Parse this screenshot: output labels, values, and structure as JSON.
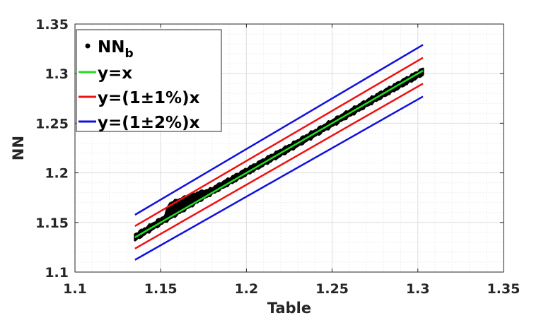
{
  "chart_data": {
    "type": "scatter",
    "xlabel": "Table",
    "ylabel": "NN",
    "xlim": [
      1.1,
      1.35
    ],
    "ylim": [
      1.1,
      1.35
    ],
    "xticks": [
      "1.1",
      "1.15",
      "1.2",
      "1.25",
      "1.3",
      "1.35"
    ],
    "yticks": [
      "1.1",
      "1.15",
      "1.2",
      "1.25",
      "1.3",
      "1.35"
    ],
    "grid": true,
    "minor_grid": true,
    "legend_position": "top-left",
    "legend": [
      {
        "label_main": "NN",
        "label_sub": "b",
        "color": "#000000",
        "marker": "dot"
      },
      {
        "label_main": "y=x",
        "label_sub": "",
        "color": "#22dd22",
        "marker": "line"
      },
      {
        "label_main": "y=(1±1%)x",
        "label_sub": "",
        "color": "#ee1111",
        "marker": "line"
      },
      {
        "label_main": "y=(1±2%)x",
        "label_sub": "",
        "color": "#1111dd",
        "marker": "line"
      }
    ],
    "scatter_band": {
      "series": "NN_b",
      "x_range": [
        1.135,
        1.303
      ],
      "center": "y=x",
      "centerline_points": [
        [
          1.135,
          1.135
        ],
        [
          1.15,
          1.151
        ],
        [
          1.175,
          1.177
        ],
        [
          1.2,
          1.201
        ],
        [
          1.225,
          1.225
        ],
        [
          1.25,
          1.25
        ],
        [
          1.275,
          1.275
        ],
        [
          1.303,
          1.302
        ]
      ],
      "typical_half_spread": 0.003,
      "local_features": [
        {
          "x_from": 1.152,
          "x_to": 1.18,
          "y_offset_upper": 0.014,
          "note": "upward bulge"
        }
      ]
    },
    "reference_lines": [
      {
        "name": "y=x",
        "factor": 1.0,
        "color": "#22dd22",
        "x_range": [
          1.135,
          1.303
        ]
      },
      {
        "name": "y=1.01x",
        "factor": 1.01,
        "color": "#ee1111",
        "x_range": [
          1.135,
          1.303
        ]
      },
      {
        "name": "y=0.99x",
        "factor": 0.99,
        "color": "#ee1111",
        "x_range": [
          1.135,
          1.303
        ]
      },
      {
        "name": "y=1.02x",
        "factor": 1.02,
        "color": "#1111dd",
        "x_range": [
          1.135,
          1.303
        ]
      },
      {
        "name": "y=0.98x",
        "factor": 0.98,
        "color": "#1111dd",
        "x_range": [
          1.135,
          1.303
        ]
      }
    ]
  }
}
